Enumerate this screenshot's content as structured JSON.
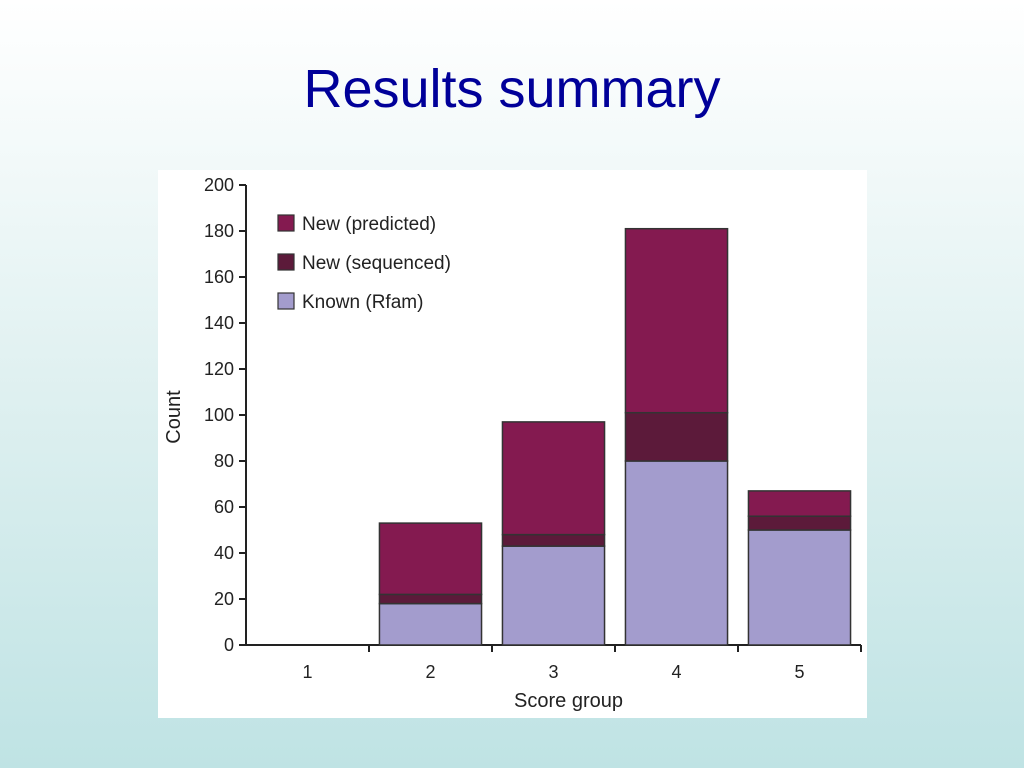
{
  "slide": {
    "title": "Results summary"
  },
  "chart_data": {
    "type": "bar",
    "stacked": true,
    "xlabel": "Score group",
    "ylabel": "Count",
    "categories": [
      "1",
      "2",
      "3",
      "4",
      "5"
    ],
    "ylim": [
      0,
      200
    ],
    "yticks": [
      0,
      20,
      40,
      60,
      80,
      100,
      120,
      140,
      160,
      180,
      200
    ],
    "legend_position": "top-left",
    "series": [
      {
        "name": "Known (Rfam)",
        "color": "#a39ccd",
        "values": [
          0,
          18,
          43,
          80,
          50
        ]
      },
      {
        "name": "New (sequenced)",
        "color": "#5c1a3a",
        "values": [
          0,
          4,
          5,
          21,
          6
        ]
      },
      {
        "name": "New (predicted)",
        "color": "#841a50",
        "values": [
          0,
          31,
          49,
          80,
          11
        ]
      }
    ],
    "legend_order": [
      2,
      1,
      0
    ],
    "grid": false
  }
}
